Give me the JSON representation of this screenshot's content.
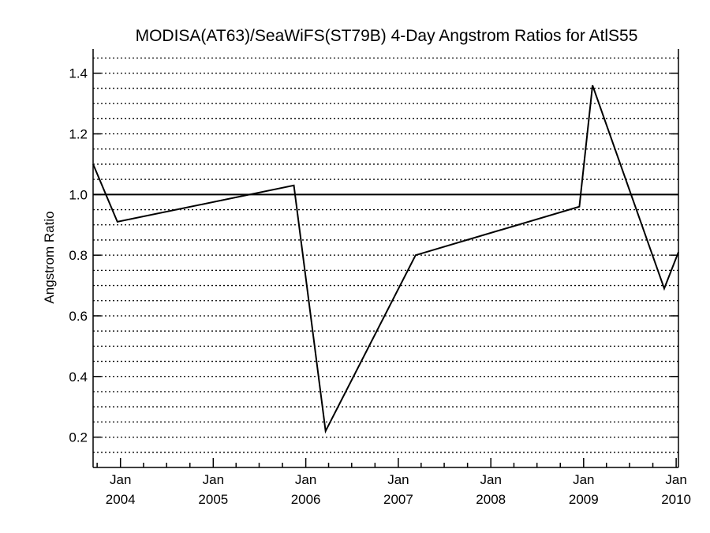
{
  "chart_data": {
    "type": "line",
    "title": "MODISA(AT63)/SeaWiFS(ST79B) 4-Day Angstrom Ratios for AtlS55",
    "xlabel": "",
    "ylabel": "Angstrom Ratio",
    "xlim": [
      "2003-09-15",
      "2010-01-10"
    ],
    "ylim": [
      0.1,
      1.48
    ],
    "y_ticks": [
      "0.2",
      "0.4",
      "0.6",
      "0.8",
      "1.0",
      "1.2",
      "1.4"
    ],
    "x_tick_labels": [
      {
        "date": "2004-01-01",
        "month": "Jan",
        "year": "2004"
      },
      {
        "date": "2005-01-01",
        "month": "Jan",
        "year": "2005"
      },
      {
        "date": "2006-01-01",
        "month": "Jan",
        "year": "2006"
      },
      {
        "date": "2007-01-01",
        "month": "Jan",
        "year": "2007"
      },
      {
        "date": "2008-01-01",
        "month": "Jan",
        "year": "2008"
      },
      {
        "date": "2009-01-01",
        "month": "Jan",
        "year": "2009"
      },
      {
        "date": "2010-01-01",
        "month": "Jan",
        "year": "2010"
      }
    ],
    "reference_line": 1.0,
    "grid": "dotted-horizontal",
    "series": [
      {
        "points": [
          {
            "x": "2003-09-15",
            "y": 1.1
          },
          {
            "x": "2003-12-20",
            "y": 0.91
          },
          {
            "x": "2005-11-15",
            "y": 1.03
          },
          {
            "x": "2006-03-20",
            "y": 0.22
          },
          {
            "x": "2007-03-10",
            "y": 0.8
          },
          {
            "x": "2008-12-15",
            "y": 0.96
          },
          {
            "x": "2009-02-05",
            "y": 1.36
          },
          {
            "x": "2009-11-15",
            "y": 0.69
          },
          {
            "x": "2010-01-10",
            "y": 0.81
          }
        ]
      }
    ]
  }
}
